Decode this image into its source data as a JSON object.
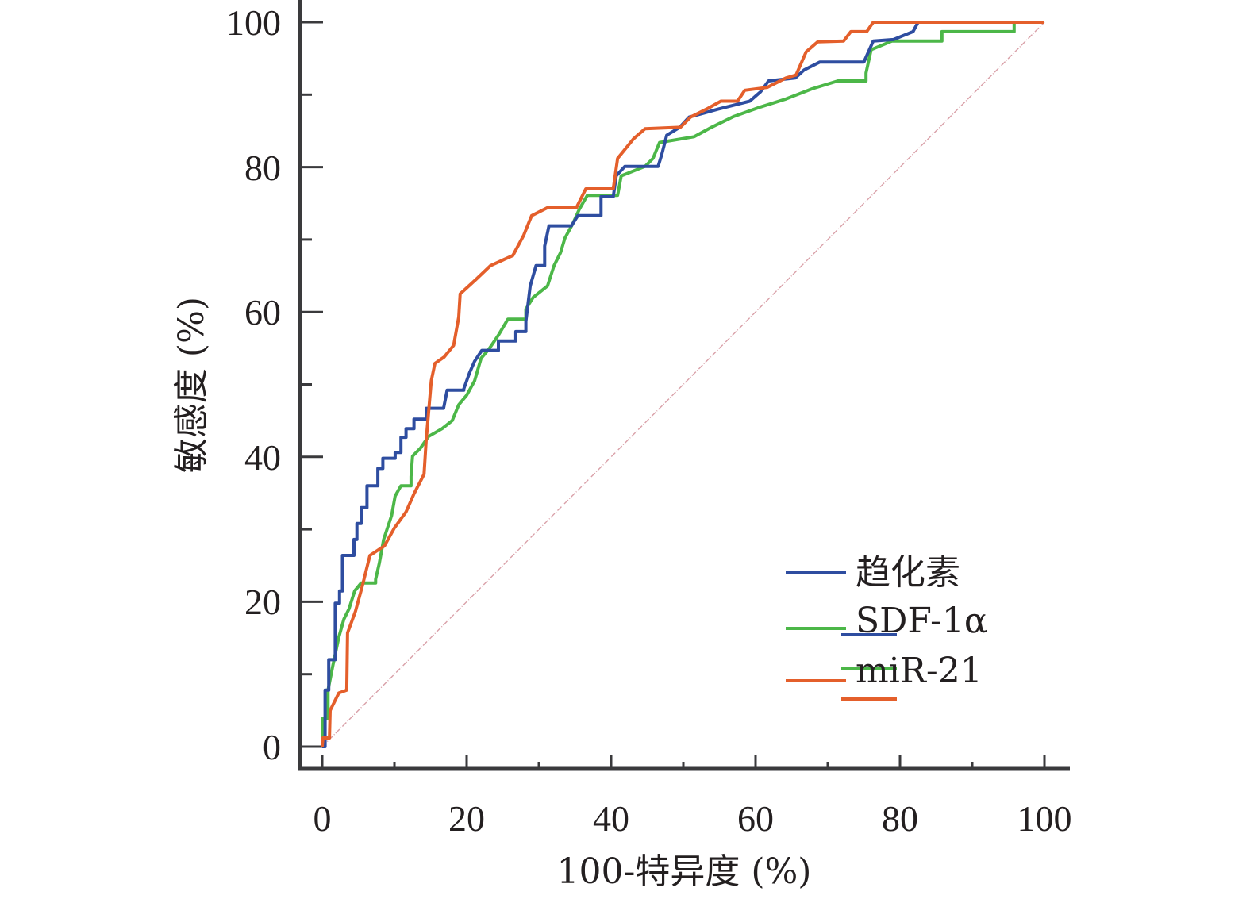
{
  "chart_data": {
    "type": "line",
    "title": "",
    "xlabel": "100-特异度 (%)",
    "ylabel": "敏感度 (%)",
    "xlim": [
      0,
      100
    ],
    "ylim": [
      0,
      100
    ],
    "grid": false,
    "legend_position": "bottom-right",
    "x_ticks": [
      "0",
      "20",
      "40",
      "60",
      "80",
      "100"
    ],
    "y_ticks": [
      "0",
      "20",
      "40",
      "60",
      "80",
      "100"
    ],
    "reference_line": {
      "name": "chance",
      "color": "#d9a0a8",
      "points": [
        [
          0,
          0
        ],
        [
          100,
          100
        ]
      ]
    },
    "series": [
      {
        "name": "趋化素",
        "color": "#2e4da0",
        "points": [
          [
            0,
            0
          ],
          [
            0.4,
            0
          ],
          [
            0.4,
            7.8
          ],
          [
            0.9,
            7.8
          ],
          [
            0.9,
            12
          ],
          [
            1.8,
            12
          ],
          [
            1.8,
            19.8
          ],
          [
            2.4,
            19.8
          ],
          [
            2.4,
            21.5
          ],
          [
            2.8,
            21.5
          ],
          [
            2.8,
            26.4
          ],
          [
            4.4,
            26.4
          ],
          [
            4.4,
            28.6
          ],
          [
            4.8,
            28.6
          ],
          [
            4.8,
            30.8
          ],
          [
            5.4,
            30.8
          ],
          [
            5.4,
            33
          ],
          [
            6.2,
            33
          ],
          [
            6.2,
            36
          ],
          [
            7.7,
            36
          ],
          [
            7.7,
            38.4
          ],
          [
            8.4,
            38.4
          ],
          [
            8.4,
            39.8
          ],
          [
            10.1,
            39.8
          ],
          [
            10.1,
            40.6
          ],
          [
            10.9,
            40.6
          ],
          [
            10.9,
            42.7
          ],
          [
            11.6,
            42.7
          ],
          [
            11.6,
            43.9
          ],
          [
            12.7,
            43.9
          ],
          [
            12.7,
            45.2
          ],
          [
            14.4,
            45.2
          ],
          [
            14.4,
            46.7
          ],
          [
            16.8,
            46.7
          ],
          [
            17.3,
            49.2
          ],
          [
            19.6,
            49.2
          ],
          [
            19.6,
            49.4
          ],
          [
            20.4,
            51.6
          ],
          [
            21.1,
            53.2
          ],
          [
            22.1,
            54.7
          ],
          [
            24.4,
            54.7
          ],
          [
            24.4,
            56
          ],
          [
            26.8,
            56
          ],
          [
            26.8,
            57.3
          ],
          [
            28.2,
            57.3
          ],
          [
            28.2,
            58.7
          ],
          [
            28.8,
            63.6
          ],
          [
            29.6,
            66.4
          ],
          [
            30.8,
            66.4
          ],
          [
            30.8,
            69.1
          ],
          [
            31.4,
            71.9
          ],
          [
            34.5,
            71.9
          ],
          [
            35.4,
            73.3
          ],
          [
            38.6,
            73.3
          ],
          [
            38.6,
            75.9
          ],
          [
            40.3,
            75.9
          ],
          [
            40.7,
            78.8
          ],
          [
            41.9,
            80.1
          ],
          [
            46.5,
            80.1
          ],
          [
            47.0,
            81.7
          ],
          [
            47.7,
            84.4
          ],
          [
            49.5,
            85.5
          ],
          [
            50.8,
            86.9
          ],
          [
            54.8,
            88
          ],
          [
            59.2,
            89.1
          ],
          [
            60.7,
            90.4
          ],
          [
            61.8,
            91.9
          ],
          [
            65.5,
            92.3
          ],
          [
            66.7,
            93.4
          ],
          [
            68.9,
            94.5
          ],
          [
            75,
            94.5
          ],
          [
            76.3,
            97.4
          ],
          [
            79.1,
            97.6
          ],
          [
            81.8,
            98.7
          ],
          [
            82.5,
            100
          ]
        ]
      },
      {
        "name": "SDF-1α",
        "color": "#4cb748",
        "points": [
          [
            0,
            0
          ],
          [
            0,
            3.9
          ],
          [
            0.8,
            3.9
          ],
          [
            0.8,
            7.8
          ],
          [
            1.5,
            11.3
          ],
          [
            2.3,
            15.1
          ],
          [
            3.0,
            17.6
          ],
          [
            3.7,
            19
          ],
          [
            4.5,
            21.5
          ],
          [
            5.4,
            22.6
          ],
          [
            7.4,
            22.6
          ],
          [
            7.4,
            23.1
          ],
          [
            7.9,
            25.3
          ],
          [
            8.5,
            28.6
          ],
          [
            9.6,
            31.9
          ],
          [
            10.1,
            34.6
          ],
          [
            10.9,
            36
          ],
          [
            12.3,
            36
          ],
          [
            12.3,
            37.3
          ],
          [
            12.5,
            40.1
          ],
          [
            13.6,
            41.2
          ],
          [
            14.7,
            42.8
          ],
          [
            16.6,
            43.9
          ],
          [
            18.0,
            45
          ],
          [
            18.9,
            47.2
          ],
          [
            20.0,
            48.5
          ],
          [
            21.1,
            50.5
          ],
          [
            22.0,
            53.6
          ],
          [
            23.1,
            54.9
          ],
          [
            24.4,
            56.8
          ],
          [
            25.7,
            59
          ],
          [
            28.2,
            59
          ],
          [
            28.2,
            60.4
          ],
          [
            29.2,
            62
          ],
          [
            31.2,
            63.6
          ],
          [
            32.1,
            66.4
          ],
          [
            33.0,
            68.2
          ],
          [
            33.6,
            70.2
          ],
          [
            34.7,
            72.2
          ],
          [
            35.6,
            74.2
          ],
          [
            36.7,
            76.1
          ],
          [
            40.9,
            76.1
          ],
          [
            41.4,
            78.8
          ],
          [
            44.7,
            80.1
          ],
          [
            45.8,
            81.2
          ],
          [
            46.7,
            83.4
          ],
          [
            51.5,
            84.2
          ],
          [
            53.9,
            85.5
          ],
          [
            57.0,
            87
          ],
          [
            60.7,
            88.3
          ],
          [
            64.2,
            89.4
          ],
          [
            67.8,
            90.8
          ],
          [
            71.4,
            91.9
          ],
          [
            75.3,
            91.9
          ],
          [
            75.3,
            93
          ],
          [
            76.0,
            96.2
          ],
          [
            78.9,
            97.4
          ],
          [
            85.8,
            97.4
          ],
          [
            85.8,
            98.7
          ],
          [
            95.8,
            98.7
          ],
          [
            95.8,
            100
          ]
        ]
      },
      {
        "name": "miR-21",
        "color": "#e45f2b",
        "points": [
          [
            0,
            0
          ],
          [
            0.1,
            1.2
          ],
          [
            1.0,
            1.2
          ],
          [
            1.1,
            5
          ],
          [
            2.3,
            7.4
          ],
          [
            3.4,
            7.8
          ],
          [
            3.5,
            15.7
          ],
          [
            4.6,
            18.7
          ],
          [
            5.5,
            22
          ],
          [
            6.6,
            26.4
          ],
          [
            8.6,
            27.7
          ],
          [
            10.0,
            30.2
          ],
          [
            11.6,
            32.4
          ],
          [
            12.7,
            34.9
          ],
          [
            14.1,
            37.6
          ],
          [
            14.4,
            42.3
          ],
          [
            15.1,
            50.5
          ],
          [
            15.6,
            52.9
          ],
          [
            16.9,
            53.8
          ],
          [
            18.2,
            55.4
          ],
          [
            18.9,
            59.3
          ],
          [
            19.1,
            62.5
          ],
          [
            21.3,
            64.5
          ],
          [
            23.3,
            66.4
          ],
          [
            26.4,
            67.8
          ],
          [
            27.9,
            70.6
          ],
          [
            29.0,
            73.3
          ],
          [
            31.2,
            74.4
          ],
          [
            35.2,
            74.4
          ],
          [
            36.5,
            77
          ],
          [
            40.3,
            77
          ],
          [
            40.9,
            81.2
          ],
          [
            43.1,
            83.9
          ],
          [
            44.7,
            85.3
          ],
          [
            49.6,
            85.5
          ],
          [
            51.0,
            86.9
          ],
          [
            53.2,
            88
          ],
          [
            55.2,
            89.1
          ],
          [
            57.5,
            89.1
          ],
          [
            58.5,
            90.6
          ],
          [
            61.6,
            91
          ],
          [
            64.2,
            92.3
          ],
          [
            65.6,
            92.7
          ],
          [
            67.0,
            95.9
          ],
          [
            68.6,
            97.3
          ],
          [
            72.2,
            97.4
          ],
          [
            73.2,
            98.7
          ],
          [
            75.4,
            98.7
          ],
          [
            76.3,
            100
          ],
          [
            100,
            100
          ]
        ]
      }
    ]
  },
  "legend": {
    "items": [
      {
        "label": "趋化素",
        "color": "#2e4da0"
      },
      {
        "label": "SDF-1α",
        "color": "#4cb748"
      },
      {
        "label": "miR-21",
        "color": "#e45f2b"
      }
    ],
    "offset_swatch_colors": [
      "#2e4da0",
      "#4cb748",
      "#e45f2b"
    ]
  },
  "colors": {
    "axis": "#3a3a3c",
    "text": "#231f20"
  }
}
